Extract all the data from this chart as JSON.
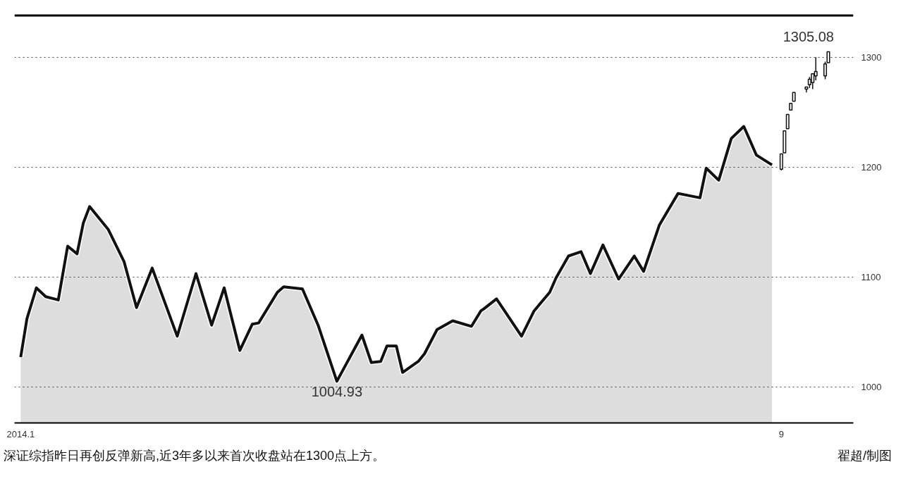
{
  "chart_data": {
    "type": "area",
    "xlim": [
      "2013-12-30",
      "2014-09-24"
    ],
    "ylim": [
      967,
      1339
    ],
    "xticks": [
      {
        "value": "2014-01-01",
        "label": "2014.1"
      },
      {
        "value": "2014-09-01",
        "label": "9"
      }
    ],
    "yticks": [
      1000,
      1100,
      1200,
      1300
    ],
    "grid": "y",
    "line_style": "solid",
    "series": [
      {
        "color": "#111111",
        "x": [
          "2014-01-01",
          "2014-01-03",
          "2014-01-06",
          "2014-01-09",
          "2014-01-13",
          "2014-01-16",
          "2014-01-19",
          "2014-01-21",
          "2014-01-23",
          "2014-01-29",
          "2014-02-03",
          "2014-02-07",
          "2014-02-12",
          "2014-02-20",
          "2014-02-26",
          "2014-03-03",
          "2014-03-07",
          "2014-03-12",
          "2014-03-16",
          "2014-03-18",
          "2014-03-24",
          "2014-03-26",
          "2014-04-01",
          "2014-04-06",
          "2014-04-12",
          "2014-04-20",
          "2014-04-23",
          "2014-04-26",
          "2014-04-28",
          "2014-05-01",
          "2014-05-03",
          "2014-05-08",
          "2014-05-10",
          "2014-05-14",
          "2014-05-19",
          "2014-05-25",
          "2014-05-28",
          "2014-05-29",
          "2014-06-02",
          "2014-06-10",
          "2014-06-14",
          "2014-06-19",
          "2014-06-21",
          "2014-06-25",
          "2014-06-29",
          "2014-07-02",
          "2014-07-06",
          "2014-07-11",
          "2014-07-16",
          "2014-07-19",
          "2014-07-24",
          "2014-07-30",
          "2014-08-06",
          "2014-08-08",
          "2014-08-12",
          "2014-08-16",
          "2014-08-20",
          "2014-08-24",
          "2014-08-29"
        ],
        "values": [
          1027,
          1062,
          1090,
          1082,
          1079,
          1128,
          1121,
          1149,
          1164,
          1143,
          1114,
          1072,
          1108,
          1046,
          1103,
          1056,
          1090,
          1033,
          1057,
          1058,
          1086,
          1091,
          1089,
          1056,
          1004.93,
          1047,
          1022,
          1023,
          1037,
          1037,
          1013,
          1023,
          1030,
          1052,
          1060,
          1055,
          1069,
          1071,
          1080,
          1046,
          1069,
          1086,
          1099,
          1119,
          1123,
          1103,
          1129,
          1098,
          1119,
          1105,
          1147,
          1176,
          1172,
          1199,
          1188,
          1226,
          1237,
          1211,
          1202
        ]
      },
      {
        "type": "candlestick",
        "color": "#ffffff",
        "x": [
          "2014-09-01",
          "2014-09-02",
          "2014-09-03",
          "2014-09-04",
          "2014-09-05",
          "2014-09-09",
          "2014-09-10",
          "2014-09-11",
          "2014-09-12",
          "2014-09-15",
          "2014-09-16"
        ],
        "ohlc": [
          [
            1198,
            1212,
            1197,
            1212
          ],
          [
            1213,
            1233,
            1213,
            1233
          ],
          [
            1235,
            1248,
            1235,
            1248
          ],
          [
            1252,
            1258,
            1252,
            1258
          ],
          [
            1260,
            1268,
            1260,
            1268
          ],
          [
            1271,
            1273,
            1268,
            1273
          ],
          [
            1275,
            1282,
            1272,
            1280
          ],
          [
            1277,
            1285,
            1271,
            1285
          ],
          [
            1283,
            1300,
            1279,
            1287
          ],
          [
            1283,
            1296,
            1280,
            1294
          ],
          [
            1295,
            1305.08,
            1295,
            1305.08
          ]
        ]
      }
    ],
    "annotations": [
      {
        "text": "1305.08",
        "x": "2014-09-16",
        "y": 1305.08
      },
      {
        "text": "1004.93",
        "x": "2014-04-12",
        "y": 1004.93
      },
      "深证综指昨日再创反弹新高,近3年多以来首次收盘站在1300点上方。",
      "翟超/制图"
    ]
  }
}
